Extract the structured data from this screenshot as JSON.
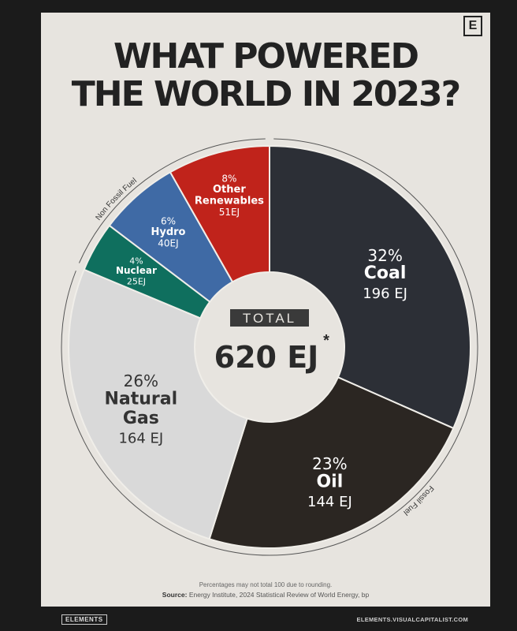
{
  "header": {
    "title_line1": "WHAT POWERED",
    "title_line2": "THE WORLD IN 2023?",
    "logo_letter": "E"
  },
  "chart_data": {
    "type": "pie",
    "title": "WHAT POWERED THE WORLD IN 2023?",
    "center_label": "TOTAL",
    "center_value": "620 EJ",
    "center_mark": "*",
    "slices": [
      {
        "name": "Coal",
        "percent": "32%",
        "value": 196,
        "value_label": "196 EJ",
        "color": "#2c2f36"
      },
      {
        "name": "Oil",
        "percent": "23%",
        "value": 144,
        "value_label": "144 EJ",
        "color": "#2b2622"
      },
      {
        "name": "Natural Gas",
        "percent": "26%",
        "value": 164,
        "value_label": "164 EJ",
        "color": "#d9d9d9"
      },
      {
        "name": "Nuclear",
        "percent": "4%",
        "value": 25,
        "value_label": "25EJ",
        "color": "#0f6f5e"
      },
      {
        "name": "Hydro",
        "percent": "6%",
        "value": 40,
        "value_label": "40EJ",
        "color": "#3f6aa5"
      },
      {
        "name": "Other Renewables",
        "percent": "8%",
        "value": 51,
        "value_label": "51EJ",
        "color": "#c0231b"
      }
    ],
    "groups": [
      {
        "label": "Fossil Fuel"
      },
      {
        "label": "Non Fossil Fuel"
      }
    ]
  },
  "footer": {
    "footnote": "Percentages may not total 100 due to rounding.",
    "source_label": "Source:",
    "source_text": "Energy Institute, 2024 Statistical Review of World Energy, bp",
    "brand_left": "ELEMENTS",
    "brand_right": "ELEMENTS.VISUALCAPITALIST.COM"
  }
}
